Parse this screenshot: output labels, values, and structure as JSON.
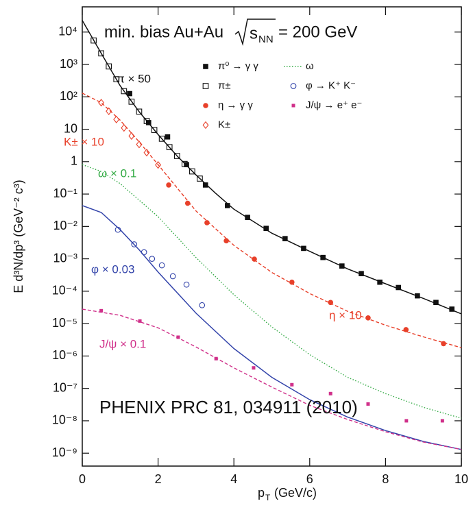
{
  "chart_data": {
    "type": "scatter",
    "title": [
      "min. bias Au+Au",
      "s",
      "NN",
      "= 200 GeV"
    ],
    "x_label": [
      "p",
      "T",
      "(GeV/c)"
    ],
    "y_label": "E d³N/dp³ (GeV⁻² c³)",
    "log_y": true,
    "xlim": [
      0,
      10
    ],
    "ylim": [
      4e-10,
      60000
    ],
    "xticks": [
      0,
      2,
      4,
      6,
      8,
      10
    ],
    "yticks": [
      {
        "value": 1e-09,
        "label": "10⁻⁹"
      },
      {
        "value": 1e-08,
        "label": "10⁻⁸"
      },
      {
        "value": 1e-07,
        "label": "10⁻⁷"
      },
      {
        "value": 1e-06,
        "label": "10⁻⁶"
      },
      {
        "value": 1e-05,
        "label": "10⁻⁵"
      },
      {
        "value": 0.0001,
        "label": "10⁻⁴"
      },
      {
        "value": 0.001,
        "label": "10⁻³"
      },
      {
        "value": 0.01,
        "label": "10⁻²"
      },
      {
        "value": 0.1,
        "label": "10⁻¹"
      },
      1,
      10,
      {
        "value": 100,
        "label": "10²"
      },
      {
        "value": 1000,
        "label": "10³"
      },
      {
        "value": 10000,
        "label": "10⁴"
      }
    ],
    "annotations": [
      "π × 50",
      "K± × 10",
      "ω × 0.1",
      "φ × 0.03",
      "J/ψ × 0.1",
      "η × 10",
      "PHENIX PRC 81, 034911 (2010)"
    ],
    "series": [
      {
        "name": "π⁰ → γ γ",
        "color": "#111111",
        "marker": "square-filled",
        "x": [
          1.25,
          1.75,
          2.25,
          2.75,
          3.25,
          3.83,
          4.36,
          4.85,
          5.35,
          5.84,
          6.35,
          6.85,
          7.36,
          7.85,
          8.34,
          8.84,
          9.33,
          9.75
        ],
        "values": [
          126,
          16,
          5.8,
          0.81,
          0.19,
          0.044,
          0.019,
          0.0087,
          0.0042,
          0.0021,
          0.0011,
          0.0006,
          0.00035,
          0.00019,
          0.00013,
          7.2e-05,
          4.5e-05,
          2.8e-05
        ]
      },
      {
        "name": "ω",
        "color": "#33aa44",
        "line": "dotted",
        "x": [
          0,
          0.5,
          1,
          2,
          3,
          4,
          5,
          6,
          7,
          8,
          9,
          10
        ],
        "values": [
          0.81,
          0.5,
          0.21,
          0.02,
          0.0011,
          7.8e-05,
          7.9e-06,
          1.1e-06,
          2.2e-07,
          6.9e-08,
          2.6e-08,
          1.2e-08
        ]
      },
      {
        "name": "π±",
        "color": "#111111",
        "marker": "square-open",
        "x": [
          0.3,
          0.5,
          0.7,
          0.9,
          1.1,
          1.3,
          1.5,
          1.7,
          1.9,
          2.1,
          2.3,
          2.5,
          2.7,
          2.9,
          3.1
        ],
        "values": [
          5500,
          2200,
          870,
          350,
          150,
          71,
          35,
          18,
          9.5,
          5.1,
          2.8,
          1.5,
          0.85,
          0.5,
          0.3
        ]
      },
      {
        "name": "φ → K⁺ K⁻",
        "color": "#3344aa",
        "marker": "circle-open",
        "x": [
          0.94,
          1.37,
          1.63,
          1.84,
          2.1,
          2.39,
          2.75,
          3.16
        ],
        "values": [
          0.0079,
          0.0028,
          0.0016,
          0.001,
          0.00063,
          0.00029,
          0.00016,
          3.7e-05
        ]
      },
      {
        "name": "η → γ γ",
        "color": "#e8402a",
        "marker": "circle-filled",
        "x": [
          2.28,
          2.78,
          3.29,
          3.8,
          4.54,
          5.53,
          6.55,
          7.54,
          8.54,
          9.53
        ],
        "values": [
          0.19,
          0.052,
          0.013,
          0.0036,
          0.00098,
          0.00019,
          4.5e-05,
          1.5e-05,
          6.5e-06,
          2.4e-06
        ]
      },
      {
        "name": "J/ψ → e⁺ e⁻",
        "color": "#d0308a",
        "marker": "square-small",
        "x": [
          0.5,
          1.52,
          2.53,
          3.53,
          4.52,
          5.53,
          6.55,
          7.54,
          8.55,
          9.5
        ],
        "values": [
          2.5e-05,
          1.2e-05,
          3.8e-06,
          8.3e-07,
          4.3e-07,
          1.3e-07,
          6.9e-08,
          3.3e-08,
          1e-08,
          1e-08
        ]
      },
      {
        "name": "K±",
        "color": "#e8402a",
        "marker": "diamond-open",
        "x": [
          0.5,
          0.7,
          0.9,
          1.1,
          1.3,
          1.5,
          1.7,
          2.0
        ],
        "values": [
          66,
          36,
          20,
          11,
          6.2,
          3.4,
          1.9,
          0.79
        ]
      },
      {
        "color": "#111111",
        "line": "solid",
        "x": [
          0,
          0.5,
          1,
          1.5,
          2,
          2.5,
          3,
          3.5,
          4,
          5,
          6,
          7,
          8,
          9,
          10
        ],
        "values": [
          23000,
          2200,
          220,
          35,
          6.9,
          1.5,
          0.39,
          0.11,
          0.034,
          0.0062,
          0.0017,
          0.00049,
          0.00017,
          6e-05,
          2e-05
        ]
      },
      {
        "color": "#e8402a",
        "line": "dashed",
        "x": [
          0,
          0.5,
          1,
          1.5,
          2,
          3,
          4,
          5,
          6,
          7,
          8,
          9,
          10
        ],
        "values": [
          130,
          66,
          19,
          4.1,
          0.81,
          0.03,
          0.0026,
          0.00038,
          8.5e-05,
          2.4e-05,
          8.9e-06,
          3.9e-06,
          1.8e-06
        ]
      },
      {
        "color": "#3344aa",
        "line": "solid",
        "x": [
          0,
          0.5,
          1,
          1.5,
          2,
          3,
          4,
          5,
          6,
          7,
          8,
          9,
          10
        ],
        "values": [
          0.044,
          0.027,
          0.0079,
          0.0019,
          0.00039,
          2.1e-05,
          1.7e-06,
          2.2e-07,
          4.5e-08,
          1.3e-08,
          5e-09,
          2.3e-09,
          1.3e-09
        ]
      },
      {
        "color": "#d0308a",
        "line": "dashed",
        "x": [
          0,
          1,
          2,
          3,
          4,
          5,
          6,
          7,
          8,
          9,
          10
        ],
        "values": [
          2.8e-05,
          1.8e-05,
          7.4e-06,
          1.9e-06,
          4.3e-07,
          1.1e-07,
          3e-08,
          1.1e-08,
          4.6e-09,
          2.2e-09,
          1.3e-09
        ]
      }
    ]
  }
}
